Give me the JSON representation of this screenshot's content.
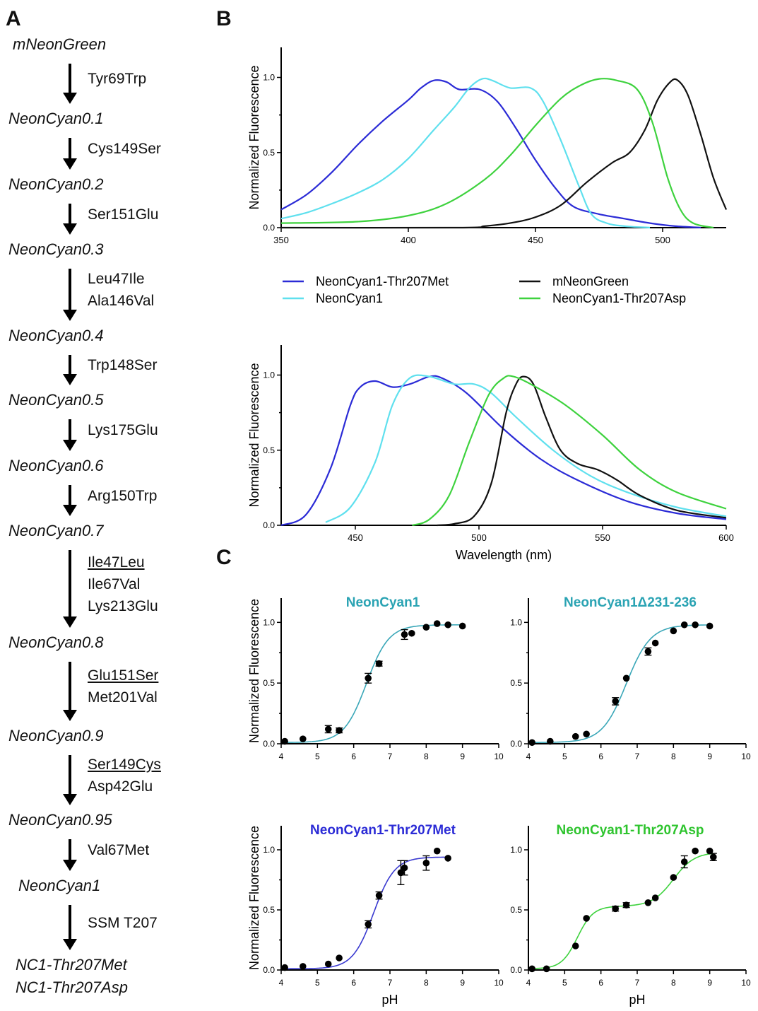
{
  "panel_a": {
    "letter": "A",
    "steps": [
      "mNeonGreen",
      "NeonCyan0.1",
      "NeonCyan0.2",
      "NeonCyan0.3",
      "NeonCyan0.4",
      "NeonCyan0.5",
      "NeonCyan0.6",
      "NeonCyan0.7",
      "NeonCyan0.8",
      "NeonCyan0.9",
      "NeonCyan0.95",
      "NeonCyan1",
      "NC1-Thr207Met",
      "NC1-Thr207Asp"
    ],
    "mutations": [
      [
        {
          "t": "Tyr69Trp",
          "u": false
        }
      ],
      [
        {
          "t": "Cys149Ser",
          "u": false
        }
      ],
      [
        {
          "t": "Ser151Glu",
          "u": false
        }
      ],
      [
        {
          "t": "Leu47Ile",
          "u": false
        },
        {
          "t": "Ala146Val",
          "u": false
        }
      ],
      [
        {
          "t": "Trp148Ser",
          "u": false
        }
      ],
      [
        {
          "t": "Lys175Glu",
          "u": false
        }
      ],
      [
        {
          "t": "Arg150Trp",
          "u": false
        }
      ],
      [
        {
          "t": "Ile47Leu",
          "u": true
        },
        {
          "t": "Ile67Val",
          "u": false
        },
        {
          "t": "Lys213Glu",
          "u": false
        }
      ],
      [
        {
          "t": "Glu151Ser",
          "u": true
        },
        {
          "t": "Met201Val",
          "u": false
        }
      ],
      [
        {
          "t": "Ser149Cys",
          "u": true
        },
        {
          "t": "Asp42Glu",
          "u": false
        }
      ],
      [
        {
          "t": "Val67Met",
          "u": false
        }
      ],
      [
        {
          "t": "SSM T207",
          "u": false
        }
      ]
    ]
  },
  "panel_b_letter": "B",
  "panel_c_letter": "C",
  "colors": {
    "nc1_t207met": "#2b2bd6",
    "nc1": "#5fe0ee",
    "mneongreen": "#111111",
    "nc1_t207asp": "#3ed23e",
    "fit_nc1": "#3aa7b8"
  },
  "legend": [
    {
      "label": "NeonCyan1-Thr207Met",
      "color": "#2b2bd6"
    },
    {
      "label": "NeonCyan1",
      "color": "#5fe0ee"
    },
    {
      "label": "mNeonGreen",
      "color": "#111111"
    },
    {
      "label": "NeonCyan1-Thr207Asp",
      "color": "#3ed23e"
    }
  ],
  "chart_data": [
    {
      "type": "line",
      "panel": "B-excitation",
      "ylabel": "Normalized Fluorescence",
      "xlabel": "",
      "xlim": [
        350,
        525
      ],
      "ylim": [
        0,
        1.2
      ],
      "xticks": [
        350,
        400,
        450,
        500
      ],
      "yticks": [
        0.0,
        0.5,
        1.0
      ],
      "series": [
        {
          "name": "NeonCyan1-Thr207Met",
          "color": "#2b2bd6",
          "points": [
            [
              350,
              0.12
            ],
            [
              360,
              0.22
            ],
            [
              370,
              0.37
            ],
            [
              380,
              0.55
            ],
            [
              390,
              0.71
            ],
            [
              400,
              0.85
            ],
            [
              405,
              0.93
            ],
            [
              410,
              0.98
            ],
            [
              415,
              0.97
            ],
            [
              420,
              0.92
            ],
            [
              428,
              0.92
            ],
            [
              435,
              0.84
            ],
            [
              442,
              0.67
            ],
            [
              450,
              0.45
            ],
            [
              458,
              0.26
            ],
            [
              465,
              0.14
            ],
            [
              475,
              0.09
            ],
            [
              485,
              0.06
            ],
            [
              495,
              0.03
            ],
            [
              505,
              0.01
            ],
            [
              515,
              0.0
            ]
          ]
        },
        {
          "name": "NeonCyan1",
          "color": "#5fe0ee",
          "points": [
            [
              350,
              0.06
            ],
            [
              360,
              0.1
            ],
            [
              370,
              0.16
            ],
            [
              380,
              0.23
            ],
            [
              390,
              0.32
            ],
            [
              400,
              0.46
            ],
            [
              410,
              0.65
            ],
            [
              418,
              0.8
            ],
            [
              424,
              0.93
            ],
            [
              429,
              0.99
            ],
            [
              433,
              0.98
            ],
            [
              440,
              0.93
            ],
            [
              448,
              0.93
            ],
            [
              453,
              0.84
            ],
            [
              460,
              0.58
            ],
            [
              467,
              0.28
            ],
            [
              472,
              0.09
            ],
            [
              478,
              0.03
            ],
            [
              485,
              0.01
            ],
            [
              495,
              0.0
            ]
          ]
        },
        {
          "name": "mNeonGreen",
          "color": "#111111",
          "points": [
            [
              350,
              0.0
            ],
            [
              420,
              0.0
            ],
            [
              430,
              0.01
            ],
            [
              440,
              0.03
            ],
            [
              450,
              0.07
            ],
            [
              460,
              0.15
            ],
            [
              470,
              0.3
            ],
            [
              480,
              0.43
            ],
            [
              487,
              0.5
            ],
            [
              493,
              0.65
            ],
            [
              498,
              0.85
            ],
            [
              503,
              0.97
            ],
            [
              506,
              0.98
            ],
            [
              510,
              0.88
            ],
            [
              515,
              0.62
            ],
            [
              520,
              0.33
            ],
            [
              525,
              0.12
            ]
          ]
        },
        {
          "name": "NeonCyan1-Thr207Asp",
          "color": "#3ed23e",
          "points": [
            [
              350,
              0.03
            ],
            [
              380,
              0.04
            ],
            [
              400,
              0.08
            ],
            [
              415,
              0.16
            ],
            [
              430,
              0.32
            ],
            [
              440,
              0.48
            ],
            [
              450,
              0.68
            ],
            [
              460,
              0.86
            ],
            [
              468,
              0.95
            ],
            [
              475,
              0.99
            ],
            [
              482,
              0.98
            ],
            [
              490,
              0.92
            ],
            [
              496,
              0.7
            ],
            [
              502,
              0.33
            ],
            [
              507,
              0.12
            ],
            [
              512,
              0.03
            ],
            [
              520,
              0.0
            ]
          ]
        }
      ]
    },
    {
      "type": "line",
      "panel": "B-emission",
      "ylabel": "Normalized Fluorescence",
      "xlabel": "Wavelength (nm)",
      "xlim": [
        420,
        600
      ],
      "ylim": [
        0,
        1.2
      ],
      "xticks": [
        450,
        500,
        550,
        600
      ],
      "yticks": [
        0.0,
        0.5,
        1.0
      ],
      "series": [
        {
          "name": "NeonCyan1-Thr207Met",
          "color": "#2b2bd6",
          "points": [
            [
              420,
              0.0
            ],
            [
              430,
              0.07
            ],
            [
              440,
              0.38
            ],
            [
              448,
              0.8
            ],
            [
              452,
              0.92
            ],
            [
              458,
              0.96
            ],
            [
              465,
              0.92
            ],
            [
              472,
              0.94
            ],
            [
              480,
              0.99
            ],
            [
              485,
              0.98
            ],
            [
              495,
              0.88
            ],
            [
              510,
              0.64
            ],
            [
              525,
              0.44
            ],
            [
              540,
              0.3
            ],
            [
              560,
              0.16
            ],
            [
              580,
              0.08
            ],
            [
              600,
              0.04
            ]
          ]
        },
        {
          "name": "NeonCyan1",
          "color": "#5fe0ee",
          "points": [
            [
              438,
              0.02
            ],
            [
              448,
              0.12
            ],
            [
              458,
              0.42
            ],
            [
              465,
              0.8
            ],
            [
              472,
              0.98
            ],
            [
              480,
              0.99
            ],
            [
              490,
              0.94
            ],
            [
              498,
              0.94
            ],
            [
              505,
              0.88
            ],
            [
              515,
              0.72
            ],
            [
              530,
              0.5
            ],
            [
              545,
              0.33
            ],
            [
              560,
              0.22
            ],
            [
              580,
              0.12
            ],
            [
              600,
              0.06
            ]
          ]
        },
        {
          "name": "mNeonGreen",
          "color": "#111111",
          "points": [
            [
              483,
              0.0
            ],
            [
              490,
              0.01
            ],
            [
              498,
              0.06
            ],
            [
              505,
              0.28
            ],
            [
              511,
              0.75
            ],
            [
              515,
              0.94
            ],
            [
              518,
              0.99
            ],
            [
              522,
              0.94
            ],
            [
              527,
              0.72
            ],
            [
              533,
              0.5
            ],
            [
              540,
              0.41
            ],
            [
              548,
              0.37
            ],
            [
              556,
              0.3
            ],
            [
              565,
              0.2
            ],
            [
              580,
              0.1
            ],
            [
              600,
              0.05
            ]
          ]
        },
        {
          "name": "NeonCyan1-Thr207Asp",
          "color": "#3ed23e",
          "points": [
            [
              473,
              0.0
            ],
            [
              480,
              0.04
            ],
            [
              488,
              0.2
            ],
            [
              496,
              0.55
            ],
            [
              504,
              0.87
            ],
            [
              510,
              0.98
            ],
            [
              514,
              0.99
            ],
            [
              522,
              0.93
            ],
            [
              535,
              0.8
            ],
            [
              550,
              0.6
            ],
            [
              565,
              0.37
            ],
            [
              580,
              0.22
            ],
            [
              600,
              0.11
            ]
          ]
        }
      ]
    },
    {
      "type": "scatter",
      "panel": "C-NeonCyan1",
      "title": "NeonCyan1",
      "title_color": "#2aa3b3",
      "fit_color": "#3aa7b8",
      "ylabel": "Normalized Fluorescence",
      "xlabel": "",
      "xlim": [
        4,
        10
      ],
      "ylim": [
        0,
        1.2
      ],
      "xticks": [
        4,
        5,
        6,
        7,
        8,
        9,
        10
      ],
      "yticks": [
        0.0,
        0.5,
        1.0
      ],
      "points": [
        [
          4.1,
          0.02,
          0
        ],
        [
          4.6,
          0.04,
          0
        ],
        [
          5.3,
          0.12,
          0.03
        ],
        [
          5.6,
          0.11,
          0.02
        ],
        [
          6.4,
          0.54,
          0.04
        ],
        [
          6.7,
          0.66,
          0.02
        ],
        [
          7.4,
          0.9,
          0.04
        ],
        [
          7.6,
          0.91,
          0
        ],
        [
          8.0,
          0.96,
          0
        ],
        [
          8.3,
          0.99,
          0
        ],
        [
          8.6,
          0.98,
          0
        ],
        [
          9.0,
          0.97,
          0
        ]
      ],
      "fit": {
        "pka": 6.35,
        "n": 1.4,
        "top": 0.98,
        "bottom": 0.01
      }
    },
    {
      "type": "scatter",
      "panel": "C-NeonCyan1-delta",
      "title": "NeonCyan1Δ231-236",
      "title_color": "#2aa3b3",
      "fit_color": "#3aa7b8",
      "ylabel": "",
      "xlabel": "",
      "xlim": [
        4,
        10
      ],
      "ylim": [
        0,
        1.2
      ],
      "xticks": [
        4,
        5,
        6,
        7,
        8,
        9,
        10
      ],
      "yticks": [
        0.0,
        0.5,
        1.0
      ],
      "points": [
        [
          4.1,
          0.01,
          0
        ],
        [
          4.6,
          0.02,
          0
        ],
        [
          5.3,
          0.06,
          0
        ],
        [
          5.6,
          0.08,
          0
        ],
        [
          6.4,
          0.35,
          0.03
        ],
        [
          6.7,
          0.54,
          0
        ],
        [
          7.3,
          0.76,
          0.03
        ],
        [
          7.5,
          0.83,
          0
        ],
        [
          8.0,
          0.93,
          0
        ],
        [
          8.3,
          0.98,
          0
        ],
        [
          8.6,
          0.98,
          0
        ],
        [
          9.0,
          0.97,
          0
        ]
      ],
      "fit": {
        "pka": 6.7,
        "n": 1.3,
        "top": 0.98,
        "bottom": 0.01
      }
    },
    {
      "type": "scatter",
      "panel": "C-Thr207Met",
      "title": "NeonCyan1-Thr207Met",
      "title_color": "#2b2bd6",
      "fit_color": "#3a3ad0",
      "ylabel": "Normalized Fluorescence",
      "xlabel": "pH",
      "xlim": [
        4,
        10
      ],
      "ylim": [
        0,
        1.2
      ],
      "xticks": [
        4,
        5,
        6,
        7,
        8,
        9,
        10
      ],
      "yticks": [
        0.0,
        0.5,
        1.0
      ],
      "points": [
        [
          4.1,
          0.02,
          0
        ],
        [
          4.6,
          0.03,
          0
        ],
        [
          5.3,
          0.05,
          0
        ],
        [
          5.6,
          0.1,
          0
        ],
        [
          6.4,
          0.38,
          0.03
        ],
        [
          6.7,
          0.62,
          0.03
        ],
        [
          7.3,
          0.81,
          0.1
        ],
        [
          7.4,
          0.85,
          0.06
        ],
        [
          8.0,
          0.89,
          0.06
        ],
        [
          8.3,
          0.99,
          0
        ],
        [
          8.6,
          0.93,
          0
        ]
      ],
      "fit": {
        "pka": 6.55,
        "n": 1.5,
        "top": 0.94,
        "bottom": 0.01
      }
    },
    {
      "type": "scatter",
      "panel": "C-Thr207Asp",
      "title": "NeonCyan1-Thr207Asp",
      "title_color": "#2ec42e",
      "fit_color": "#3ed23e",
      "ylabel": "",
      "xlabel": "pH",
      "xlim": [
        4,
        10
      ],
      "ylim": [
        0,
        1.2
      ],
      "xticks": [
        4,
        5,
        6,
        7,
        8,
        9,
        10
      ],
      "yticks": [
        0.0,
        0.5,
        1.0
      ],
      "points": [
        [
          4.1,
          0.01,
          0
        ],
        [
          4.5,
          0.01,
          0
        ],
        [
          5.3,
          0.2,
          0
        ],
        [
          5.6,
          0.43,
          0
        ],
        [
          6.4,
          0.51,
          0.02
        ],
        [
          6.7,
          0.54,
          0.02
        ],
        [
          7.3,
          0.56,
          0
        ],
        [
          7.5,
          0.6,
          0
        ],
        [
          8.0,
          0.77,
          0
        ],
        [
          8.3,
          0.9,
          0.05
        ],
        [
          8.6,
          0.99,
          0
        ],
        [
          9.0,
          0.99,
          0
        ],
        [
          9.1,
          0.94,
          0.03
        ]
      ],
      "fit": {
        "two_step": true,
        "pka1": 5.35,
        "pka2": 8.0,
        "mid": 0.53,
        "top": 0.98,
        "bottom": 0.01,
        "n1": 2.0,
        "n2": 1.5
      }
    }
  ]
}
